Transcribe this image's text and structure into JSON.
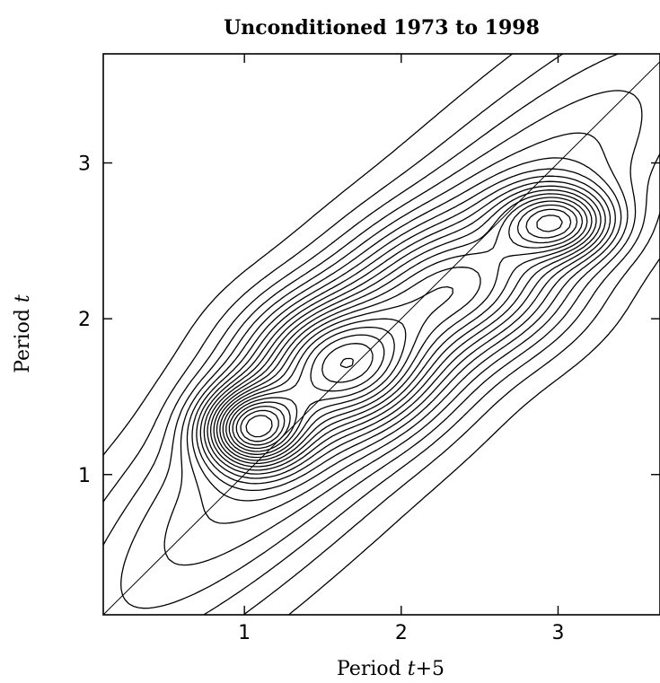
{
  "chart_data": {
    "type": "contour",
    "title": "Unconditioned 1973 to 1998",
    "xlabel_prefix": "Period ",
    "xlabel_var": "t",
    "xlabel_suffix": "+5",
    "ylabel_prefix": "Period ",
    "ylabel_var": "t",
    "xlim": [
      0.1,
      3.65
    ],
    "ylim": [
      0.1,
      3.7
    ],
    "xticks": [
      1,
      2,
      3
    ],
    "yticks": [
      1,
      2,
      3
    ],
    "grid": false,
    "legend": "none",
    "diagonal_line": true,
    "color": "#000000",
    "peaks": [
      {
        "x": 1.05,
        "y": 1.3,
        "height": 1.0,
        "sx": 0.22,
        "sy": 0.18
      },
      {
        "x": 1.6,
        "y": 1.72,
        "height": 0.78,
        "sx": 0.38,
        "sy": 0.28
      },
      {
        "x": 3.0,
        "y": 2.62,
        "height": 0.72,
        "sx": 0.25,
        "sy": 0.16
      },
      {
        "x": 2.4,
        "y": 2.2,
        "height": 0.45,
        "sx": 0.45,
        "sy": 0.28
      }
    ],
    "contour_levels": 22
  }
}
